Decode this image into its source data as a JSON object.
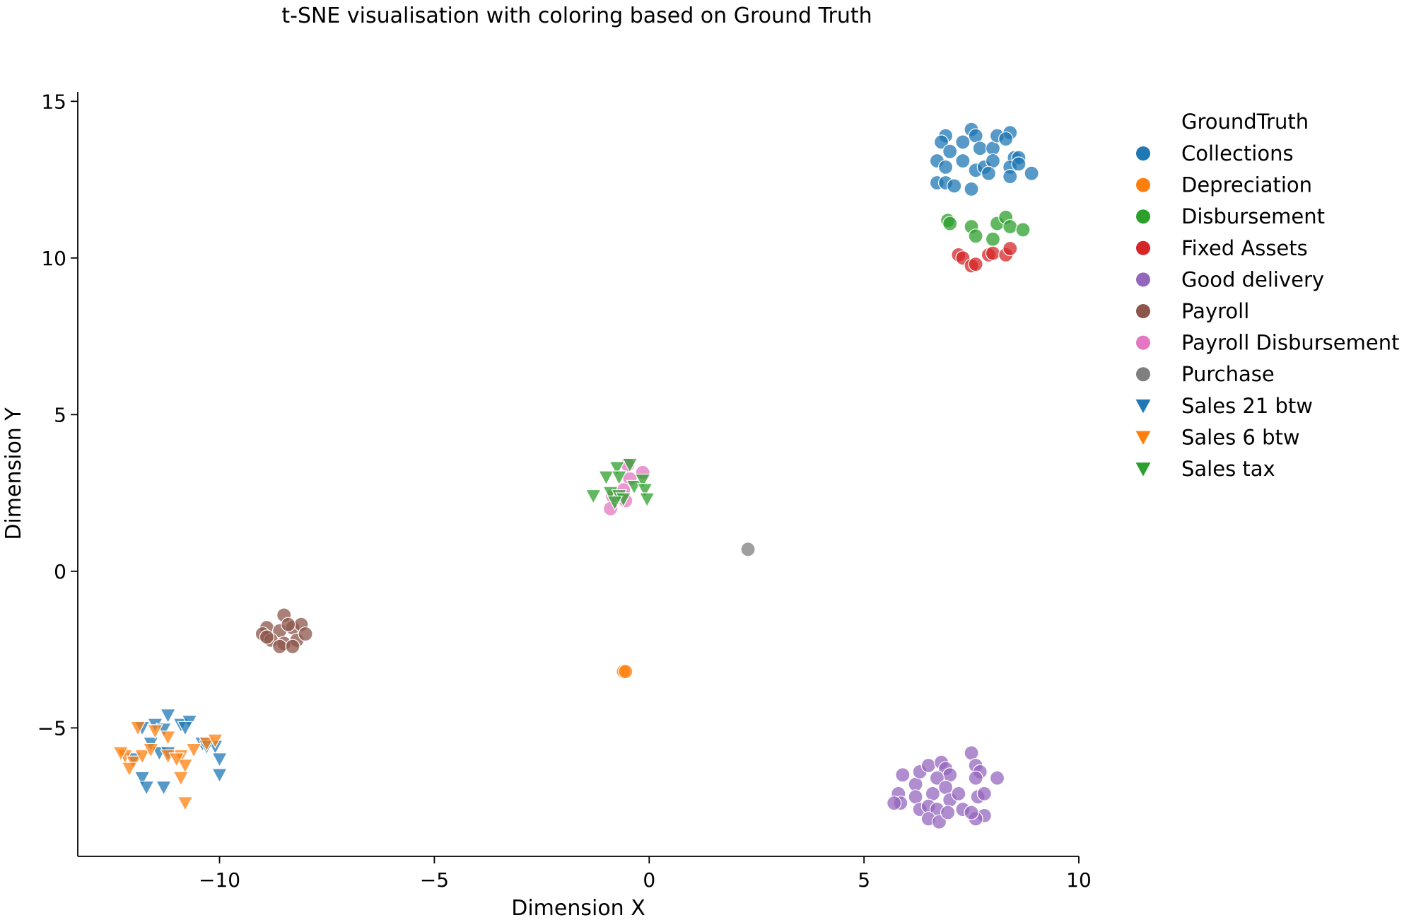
{
  "chart_data": {
    "type": "scatter",
    "title": "t-SNE visualisation with coloring based on Ground Truth",
    "xlabel": "Dimension X",
    "ylabel": "Dimension Y",
    "xlim": [
      -13.3,
      10.0
    ],
    "ylim": [
      -9.1,
      15.3
    ],
    "xticks": [
      -10,
      -5,
      0,
      5,
      10
    ],
    "yticks": [
      -5,
      0,
      5,
      10,
      15
    ],
    "xtick_labels": [
      "−10",
      "−5",
      "0",
      "5",
      "10"
    ],
    "ytick_labels": [
      "−5",
      "0",
      "5",
      "10",
      "15"
    ],
    "grid": false,
    "legend": {
      "title": "GroundTruth",
      "placement": "right, outside"
    },
    "series": [
      {
        "name": "Collections",
        "color": "#1f77b4",
        "marker": "circle",
        "points": [
          [
            6.9,
            13.9
          ],
          [
            7.5,
            14.1
          ],
          [
            7.6,
            13.9
          ],
          [
            7.3,
            13.7
          ],
          [
            6.8,
            13.7
          ],
          [
            7.0,
            13.4
          ],
          [
            7.7,
            13.5
          ],
          [
            8.0,
            13.5
          ],
          [
            8.1,
            13.9
          ],
          [
            8.4,
            14.0
          ],
          [
            8.3,
            13.8
          ],
          [
            6.7,
            13.1
          ],
          [
            6.9,
            12.9
          ],
          [
            7.3,
            13.1
          ],
          [
            7.6,
            12.8
          ],
          [
            7.8,
            12.9
          ],
          [
            8.0,
            13.1
          ],
          [
            8.5,
            13.2
          ],
          [
            8.6,
            13.2
          ],
          [
            8.4,
            12.9
          ],
          [
            8.6,
            13.0
          ],
          [
            8.9,
            12.7
          ],
          [
            7.9,
            12.7
          ],
          [
            6.7,
            12.4
          ],
          [
            6.9,
            12.4
          ],
          [
            7.1,
            12.3
          ],
          [
            7.5,
            12.2
          ],
          [
            8.4,
            12.6
          ]
        ]
      },
      {
        "name": "Depreciation",
        "color": "#ff7f0e",
        "marker": "circle",
        "points": [
          [
            -0.6,
            -3.2
          ],
          [
            -0.55,
            -3.2
          ]
        ]
      },
      {
        "name": "Disbursement",
        "color": "#2ca02c",
        "marker": "circle",
        "points": [
          [
            6.95,
            11.2
          ],
          [
            7.0,
            11.1
          ],
          [
            7.5,
            11.0
          ],
          [
            7.6,
            10.7
          ],
          [
            8.0,
            10.6
          ],
          [
            8.1,
            11.1
          ],
          [
            8.3,
            11.3
          ],
          [
            8.4,
            11.0
          ],
          [
            8.7,
            10.9
          ]
        ]
      },
      {
        "name": "Fixed Assets",
        "color": "#d62728",
        "marker": "circle",
        "points": [
          [
            7.2,
            10.1
          ],
          [
            7.3,
            10.0
          ],
          [
            7.5,
            9.75
          ],
          [
            7.6,
            9.8
          ],
          [
            7.9,
            10.1
          ],
          [
            8.0,
            10.15
          ],
          [
            8.3,
            10.1
          ],
          [
            8.4,
            10.3
          ]
        ]
      },
      {
        "name": "Good delivery",
        "color": "#9467bd",
        "marker": "circle",
        "points": [
          [
            5.9,
            -6.5
          ],
          [
            6.2,
            -6.8
          ],
          [
            6.3,
            -6.4
          ],
          [
            6.5,
            -6.2
          ],
          [
            6.8,
            -6.1
          ],
          [
            6.9,
            -6.3
          ],
          [
            7.0,
            -6.5
          ],
          [
            6.7,
            -6.6
          ],
          [
            6.9,
            -6.9
          ],
          [
            6.6,
            -7.1
          ],
          [
            6.2,
            -7.2
          ],
          [
            5.8,
            -7.1
          ],
          [
            5.85,
            -7.4
          ],
          [
            5.7,
            -7.4
          ],
          [
            6.3,
            -7.6
          ],
          [
            6.5,
            -7.5
          ],
          [
            6.7,
            -7.6
          ],
          [
            7.0,
            -7.3
          ],
          [
            7.2,
            -7.1
          ],
          [
            7.5,
            -5.8
          ],
          [
            7.6,
            -6.2
          ],
          [
            7.7,
            -6.4
          ],
          [
            7.6,
            -6.6
          ],
          [
            7.65,
            -7.2
          ],
          [
            7.8,
            -7.1
          ],
          [
            8.1,
            -6.6
          ],
          [
            7.8,
            -7.8
          ],
          [
            7.6,
            -7.9
          ],
          [
            6.5,
            -7.9
          ],
          [
            6.75,
            -8.0
          ],
          [
            6.95,
            -7.7
          ],
          [
            7.3,
            -7.6
          ],
          [
            7.5,
            -7.7
          ]
        ]
      },
      {
        "name": "Payroll",
        "color": "#8c564b",
        "marker": "circle",
        "points": [
          [
            -8.5,
            -1.4
          ],
          [
            -8.9,
            -1.8
          ],
          [
            -8.6,
            -1.9
          ],
          [
            -8.3,
            -1.8
          ],
          [
            -8.1,
            -1.7
          ],
          [
            -9.0,
            -2.0
          ],
          [
            -8.8,
            -2.2
          ],
          [
            -8.5,
            -2.3
          ],
          [
            -8.2,
            -2.2
          ],
          [
            -8.0,
            -2.0
          ],
          [
            -8.6,
            -2.4
          ],
          [
            -8.3,
            -2.4
          ],
          [
            -8.9,
            -2.1
          ],
          [
            -8.4,
            -1.7
          ]
        ]
      },
      {
        "name": "Payroll Disbursement",
        "color": "#e377c2",
        "marker": "circle",
        "points": [
          [
            -0.5,
            3.4
          ],
          [
            -0.15,
            3.15
          ],
          [
            -0.45,
            2.95
          ],
          [
            -0.6,
            2.6
          ],
          [
            -0.85,
            2.4
          ],
          [
            -0.55,
            2.25
          ],
          [
            -0.9,
            2.0
          ]
        ]
      },
      {
        "name": "Purchase",
        "color": "#7f7f7f",
        "marker": "circle",
        "points": [
          [
            2.3,
            0.7
          ]
        ]
      },
      {
        "name": "Sales 21 btw",
        "color": "#1f77b4",
        "marker": "triangle-down",
        "points": [
          [
            -11.2,
            -4.6
          ],
          [
            -10.9,
            -4.9
          ],
          [
            -10.7,
            -4.8
          ],
          [
            -10.8,
            -5.0
          ],
          [
            -11.5,
            -4.9
          ],
          [
            -11.3,
            -5.05
          ],
          [
            -11.8,
            -5.0
          ],
          [
            -11.6,
            -5.5
          ],
          [
            -11.4,
            -5.8
          ],
          [
            -11.2,
            -5.8
          ],
          [
            -10.4,
            -5.5
          ],
          [
            -10.1,
            -5.6
          ],
          [
            -10.0,
            -6.0
          ],
          [
            -12.0,
            -6.0
          ],
          [
            -11.8,
            -6.6
          ],
          [
            -11.7,
            -6.9
          ],
          [
            -11.3,
            -6.9
          ],
          [
            -10.0,
            -6.5
          ],
          [
            -10.3,
            -5.6
          ]
        ]
      },
      {
        "name": "Sales 6 btw",
        "color": "#ff7f0e",
        "marker": "triangle-down",
        "points": [
          [
            -12.2,
            -5.9
          ],
          [
            -12.0,
            -6.1
          ],
          [
            -11.8,
            -5.9
          ],
          [
            -11.6,
            -5.7
          ],
          [
            -11.9,
            -5.0
          ],
          [
            -11.5,
            -5.1
          ],
          [
            -11.2,
            -5.3
          ],
          [
            -10.9,
            -5.9
          ],
          [
            -10.8,
            -6.2
          ],
          [
            -10.9,
            -6.6
          ],
          [
            -10.6,
            -5.7
          ],
          [
            -10.3,
            -5.5
          ],
          [
            -10.1,
            -5.4
          ],
          [
            -12.1,
            -6.3
          ],
          [
            -10.8,
            -7.4
          ],
          [
            -11.2,
            -5.9
          ],
          [
            -11.0,
            -6.0
          ],
          [
            -12.3,
            -5.8
          ]
        ]
      },
      {
        "name": "Sales tax",
        "color": "#2ca02c",
        "marker": "triangle-down",
        "points": [
          [
            -0.45,
            3.4
          ],
          [
            -0.75,
            3.3
          ],
          [
            -1.0,
            3.0
          ],
          [
            -0.7,
            3.0
          ],
          [
            -1.3,
            2.4
          ],
          [
            -0.9,
            2.5
          ],
          [
            -0.7,
            2.4
          ],
          [
            -0.6,
            2.3
          ],
          [
            -0.35,
            2.7
          ],
          [
            -0.15,
            2.9
          ],
          [
            -0.1,
            2.6
          ],
          [
            -0.05,
            2.3
          ],
          [
            -0.8,
            2.2
          ]
        ]
      }
    ]
  }
}
